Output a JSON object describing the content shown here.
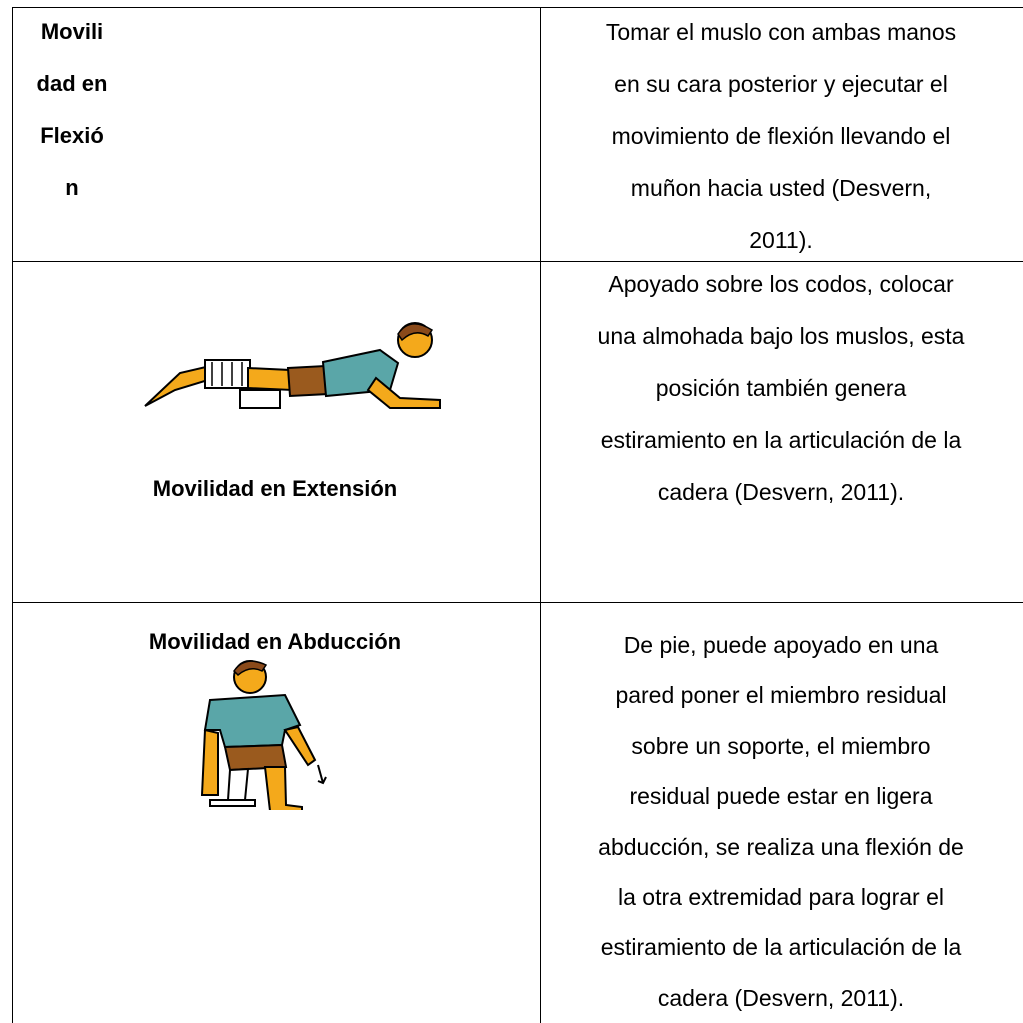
{
  "table": {
    "rows": [
      {
        "cells": [
          {
            "lines": [
              "Movili",
              "dad en",
              "Flexió",
              "n"
            ]
          },
          {
            "lines": [
              "Tomar el muslo con ambas manos",
              "en su cara posterior y ejecutar el",
              "movimiento de flexión llevando el",
              "muñon hacia usted (Desvern,",
              "2011)."
            ]
          }
        ]
      },
      {
        "cells": [
          {
            "caption": "Movilidad en Extensión"
          },
          {
            "lines": [
              "Apoyado sobre los codos, colocar",
              "una almohada bajo los muslos, esta",
              "posición también genera",
              "estiramiento en la articulación de la",
              "cadera (Desvern, 2011)."
            ]
          }
        ]
      },
      {
        "cells": [
          {
            "caption": "Movilidad en Abducción"
          },
          {
            "lines": [
              "De pie, puede apoyado en una",
              "pared poner el miembro residual",
              "sobre un soporte, el miembro",
              "residual puede estar en ligera",
              "abducción, se realiza una flexión de",
              "la otra extremidad para lograr el",
              "estiramiento de la articulación de la",
              "cadera (Desvern, 2011)."
            ]
          }
        ]
      }
    ]
  }
}
